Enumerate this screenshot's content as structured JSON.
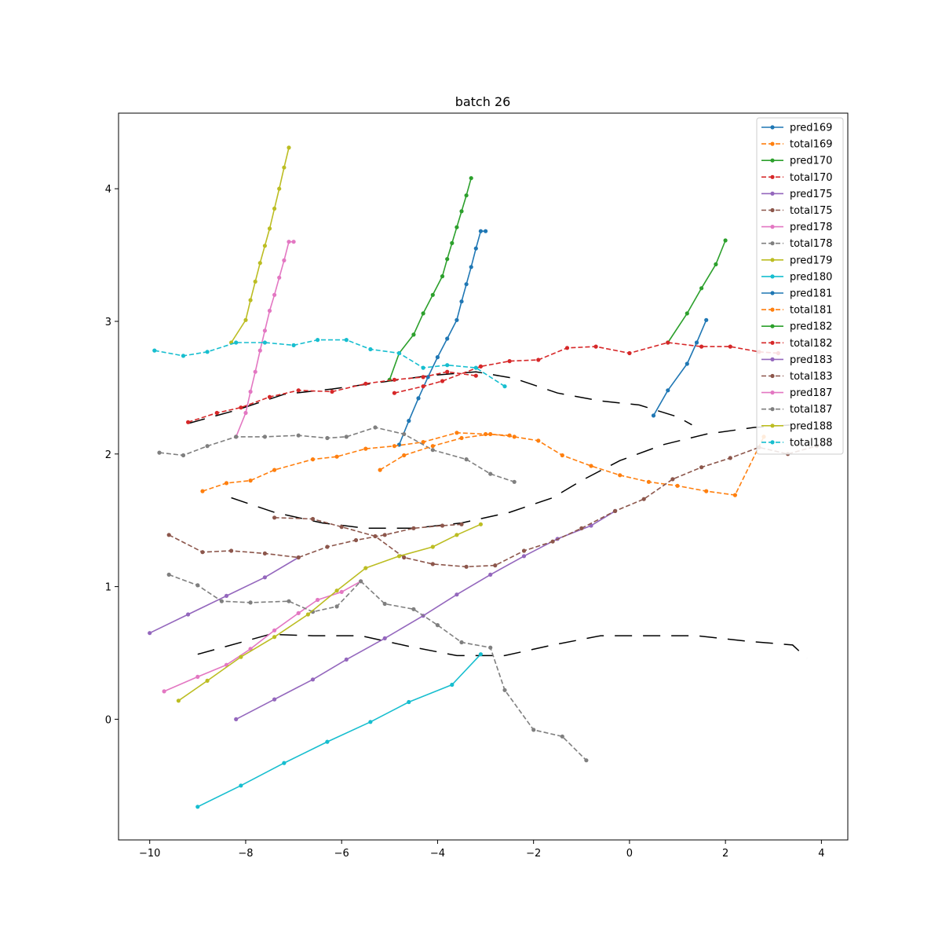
{
  "chart_data": {
    "type": "line",
    "title": "batch 26",
    "xlabel": "",
    "ylabel": "",
    "xlim": [
      -10.65,
      4.55
    ],
    "ylim": [
      -0.91,
      4.57
    ],
    "x_ticks": [
      -10,
      -8,
      -6,
      -4,
      -2,
      0,
      2,
      4
    ],
    "x_tick_labels": [
      "−10",
      "−8",
      "−6",
      "−4",
      "−2",
      "0",
      "2",
      "4"
    ],
    "y_ticks": [
      0,
      1,
      2,
      3,
      4
    ],
    "y_tick_labels": [
      "0",
      "1",
      "2",
      "3",
      "4"
    ],
    "grid": false,
    "legend_position": "top-right",
    "colors": {
      "axes": "#000000",
      "background": "#ffffff",
      "blue": "#1f77b4",
      "orange": "#ff7f0e",
      "green": "#2ca02c",
      "red": "#d62728",
      "purple": "#9467bd",
      "brown": "#8c564b",
      "pink": "#e377c2",
      "gray": "#7f7f7f",
      "olive": "#bcbd22",
      "cyan": "#17becf"
    },
    "background_dashed_lines": [
      {
        "x": [
          -9.0,
          -8.4,
          -7.5,
          -6.6,
          -5.6,
          -4.6,
          -3.6,
          -2.6,
          -1.6,
          -0.6,
          0.4,
          1.4,
          2.4,
          3.4,
          3.7
        ],
        "y": [
          0.49,
          0.55,
          0.64,
          0.63,
          0.63,
          0.55,
          0.48,
          0.48,
          0.56,
          0.63,
          0.63,
          0.63,
          0.59,
          0.56,
          0.46
        ]
      },
      {
        "x": [
          -8.3,
          -7.4,
          -6.4,
          -5.5,
          -4.5,
          -3.5,
          -2.5,
          -1.6,
          -1.0,
          -0.2,
          0.7,
          1.6,
          2.6,
          3.4
        ],
        "y": [
          1.67,
          1.56,
          1.48,
          1.44,
          1.44,
          1.48,
          1.56,
          1.67,
          1.8,
          1.95,
          2.07,
          2.15,
          2.2,
          2.22
        ]
      },
      {
        "x": [
          -9.2,
          -8.2,
          -7.2,
          -6.2,
          -5.2,
          -4.2,
          -3.2,
          -2.4,
          -1.5,
          -0.6,
          0.2,
          1.0,
          1.3
        ],
        "y": [
          2.23,
          2.33,
          2.45,
          2.49,
          2.54,
          2.59,
          2.62,
          2.57,
          2.46,
          2.4,
          2.37,
          2.28,
          2.22
        ]
      }
    ],
    "series": [
      {
        "name": "pred169",
        "color": "#1f77b4",
        "dashed": false,
        "x": [
          -4.8,
          -4.6,
          -4.4,
          -4.2,
          -4.0,
          -3.8,
          -3.6,
          -3.5,
          -3.4,
          -3.3,
          -3.2,
          -3.1,
          -3.0
        ],
        "y": [
          2.07,
          2.25,
          2.42,
          2.58,
          2.73,
          2.87,
          3.01,
          3.15,
          3.28,
          3.41,
          3.55,
          3.68,
          3.68
        ]
      },
      {
        "name": "total169",
        "color": "#ff7f0e",
        "dashed": true,
        "x": [
          -8.9,
          -8.4,
          -7.9,
          -7.4,
          -6.6,
          -6.1,
          -5.5,
          -4.9,
          -4.3,
          -3.6,
          -3.0,
          -2.5
        ],
        "y": [
          1.72,
          1.78,
          1.8,
          1.88,
          1.96,
          1.98,
          2.04,
          2.06,
          2.09,
          2.16,
          2.15,
          2.14
        ]
      },
      {
        "name": "pred170",
        "color": "#2ca02c",
        "dashed": false,
        "x": [
          -5.0,
          -4.8,
          -4.5,
          -4.3,
          -4.1,
          -3.9,
          -3.8,
          -3.7,
          -3.6,
          -3.5,
          -3.4,
          -3.3
        ],
        "y": [
          2.56,
          2.76,
          2.9,
          3.06,
          3.2,
          3.34,
          3.47,
          3.59,
          3.71,
          3.83,
          3.95,
          4.08
        ]
      },
      {
        "name": "total170",
        "color": "#d62728",
        "dashed": true,
        "x": [
          -9.2,
          -8.6,
          -8.1,
          -7.5,
          -6.9,
          -6.2,
          -5.5,
          -4.9,
          -4.3,
          -3.8,
          -3.2
        ],
        "y": [
          2.24,
          2.31,
          2.35,
          2.43,
          2.48,
          2.47,
          2.53,
          2.56,
          2.58,
          2.62,
          2.59
        ]
      },
      {
        "name": "pred175",
        "color": "#9467bd",
        "dashed": false,
        "x": [
          -10.0,
          -9.2,
          -8.4,
          -7.6,
          -6.9
        ],
        "y": [
          0.65,
          0.79,
          0.93,
          1.07,
          1.22
        ]
      },
      {
        "name": "total175",
        "color": "#8c564b",
        "dashed": true,
        "x": [
          -9.6,
          -8.9,
          -8.3,
          -7.6,
          -6.9,
          -6.3,
          -5.7,
          -5.1,
          -4.5,
          -3.9,
          -3.5
        ],
        "y": [
          1.39,
          1.26,
          1.27,
          1.25,
          1.22,
          1.3,
          1.35,
          1.39,
          1.44,
          1.46,
          1.47
        ]
      },
      {
        "name": "pred178",
        "color": "#e377c2",
        "dashed": false,
        "x": [
          -8.2,
          -8.0,
          -7.9,
          -7.8,
          -7.7,
          -7.6,
          -7.5,
          -7.4,
          -7.3,
          -7.2,
          -7.1,
          -7.0
        ],
        "y": [
          2.13,
          2.31,
          2.47,
          2.62,
          2.78,
          2.93,
          3.08,
          3.2,
          3.33,
          3.46,
          3.6,
          3.6
        ]
      },
      {
        "name": "total178",
        "color": "#7f7f7f",
        "dashed": true,
        "x": [
          -9.8,
          -9.3,
          -8.8,
          -8.2,
          -7.6,
          -6.9,
          -6.3,
          -5.9,
          -5.3,
          -4.7,
          -4.1,
          -3.4,
          -2.9,
          -2.4
        ],
        "y": [
          2.01,
          1.99,
          2.06,
          2.13,
          2.13,
          2.14,
          2.12,
          2.13,
          2.2,
          2.15,
          2.03,
          1.96,
          1.85,
          1.79
        ]
      },
      {
        "name": "pred179",
        "color": "#bcbd22",
        "dashed": false,
        "x": [
          -8.3,
          -8.0,
          -7.9,
          -7.8,
          -7.7,
          -7.6,
          -7.5,
          -7.4,
          -7.3,
          -7.2,
          -7.1
        ],
        "y": [
          2.84,
          3.01,
          3.16,
          3.3,
          3.44,
          3.57,
          3.7,
          3.85,
          4.0,
          4.16,
          4.31
        ]
      },
      {
        "name": "pred180",
        "color": "#17becf",
        "dashed": false,
        "x": [
          -9.0,
          -8.1,
          -7.2,
          -6.3,
          -5.4,
          -4.6,
          -3.7,
          -3.1
        ],
        "y": [
          -0.66,
          -0.5,
          -0.33,
          -0.17,
          -0.02,
          0.13,
          0.26,
          0.49
        ]
      },
      {
        "name": "pred181",
        "color": "#1f77b4",
        "dashed": false,
        "x": [
          0.5,
          0.8,
          1.2,
          1.4,
          1.6
        ],
        "y": [
          2.29,
          2.48,
          2.68,
          2.84,
          3.01
        ]
      },
      {
        "name": "total181",
        "color": "#ff7f0e",
        "dashed": true,
        "x": [
          -5.2,
          -4.7,
          -4.1,
          -3.5,
          -2.9,
          -2.4,
          -1.9,
          -1.4,
          -0.8,
          -0.2,
          0.4,
          1.0,
          1.6,
          2.2,
          2.8
        ],
        "y": [
          1.88,
          1.99,
          2.06,
          2.12,
          2.15,
          2.13,
          2.1,
          1.99,
          1.91,
          1.84,
          1.79,
          1.76,
          1.72,
          1.69,
          2.13
        ]
      },
      {
        "name": "pred182",
        "color": "#2ca02c",
        "dashed": false,
        "x": [
          0.8,
          1.2,
          1.5,
          1.8,
          2.0
        ],
        "y": [
          2.84,
          3.06,
          3.25,
          3.43,
          3.61
        ]
      },
      {
        "name": "total182",
        "color": "#d62728",
        "dashed": true,
        "x": [
          -4.9,
          -4.3,
          -3.9,
          -3.1,
          -2.5,
          -1.9,
          -1.3,
          -0.7,
          0.0,
          0.8,
          1.5,
          2.1,
          2.7,
          3.1
        ],
        "y": [
          2.46,
          2.51,
          2.55,
          2.66,
          2.7,
          2.71,
          2.8,
          2.81,
          2.76,
          2.84,
          2.81,
          2.81,
          2.77,
          2.76
        ]
      },
      {
        "name": "pred183",
        "color": "#9467bd",
        "dashed": false,
        "x": [
          -8.2,
          -7.4,
          -6.6,
          -5.9,
          -5.1,
          -4.3,
          -3.6,
          -2.9,
          -2.2,
          -1.5,
          -0.8,
          -0.3
        ],
        "y": [
          0.0,
          0.15,
          0.3,
          0.45,
          0.61,
          0.78,
          0.94,
          1.09,
          1.23,
          1.36,
          1.46,
          1.57
        ]
      },
      {
        "name": "total183",
        "color": "#8c564b",
        "dashed": true,
        "x": [
          -7.4,
          -6.6,
          -6.0,
          -5.3,
          -4.7,
          -4.1,
          -3.4,
          -2.8,
          -2.2,
          -1.6,
          -1.0,
          -0.3,
          0.3,
          0.9,
          1.5,
          2.1,
          2.7,
          3.3,
          3.9
        ],
        "y": [
          1.52,
          1.51,
          1.45,
          1.38,
          1.22,
          1.17,
          1.15,
          1.16,
          1.27,
          1.34,
          1.44,
          1.57,
          1.66,
          1.81,
          1.9,
          1.97,
          2.05,
          2.0,
          2.06
        ]
      },
      {
        "name": "pred187",
        "color": "#e377c2",
        "dashed": false,
        "x": [
          -9.7,
          -9.0,
          -8.4,
          -7.9,
          -7.4,
          -6.9,
          -6.5,
          -6.0,
          -5.6
        ],
        "y": [
          0.21,
          0.32,
          0.41,
          0.53,
          0.67,
          0.8,
          0.9,
          0.96,
          1.04
        ]
      },
      {
        "name": "total187",
        "color": "#7f7f7f",
        "dashed": true,
        "x": [
          -9.6,
          -9.0,
          -8.5,
          -7.9,
          -7.1,
          -6.6,
          -6.1,
          -5.6,
          -5.1,
          -4.5,
          -4.0,
          -3.5,
          -2.9,
          -2.6,
          -2.0,
          -1.4,
          -0.9
        ],
        "y": [
          1.09,
          1.01,
          0.89,
          0.88,
          0.89,
          0.81,
          0.85,
          1.04,
          0.87,
          0.83,
          0.71,
          0.58,
          0.54,
          0.22,
          -0.08,
          -0.13,
          -0.31
        ]
      },
      {
        "name": "pred188",
        "color": "#bcbd22",
        "dashed": false,
        "x": [
          -9.4,
          -8.8,
          -8.1,
          -7.4,
          -6.7,
          -6.1,
          -5.5,
          -4.8,
          -4.1,
          -3.6,
          -3.1
        ],
        "y": [
          0.14,
          0.29,
          0.47,
          0.62,
          0.79,
          0.97,
          1.14,
          1.23,
          1.3,
          1.39,
          1.47
        ]
      },
      {
        "name": "total188",
        "color": "#17becf",
        "dashed": true,
        "x": [
          -9.9,
          -9.3,
          -8.8,
          -8.2,
          -7.6,
          -7.0,
          -6.5,
          -5.9,
          -5.4,
          -4.8,
          -4.3,
          -3.8,
          -3.2,
          -2.6
        ],
        "y": [
          2.78,
          2.74,
          2.77,
          2.84,
          2.84,
          2.82,
          2.86,
          2.86,
          2.79,
          2.76,
          2.65,
          2.67,
          2.65,
          2.51
        ]
      }
    ]
  }
}
